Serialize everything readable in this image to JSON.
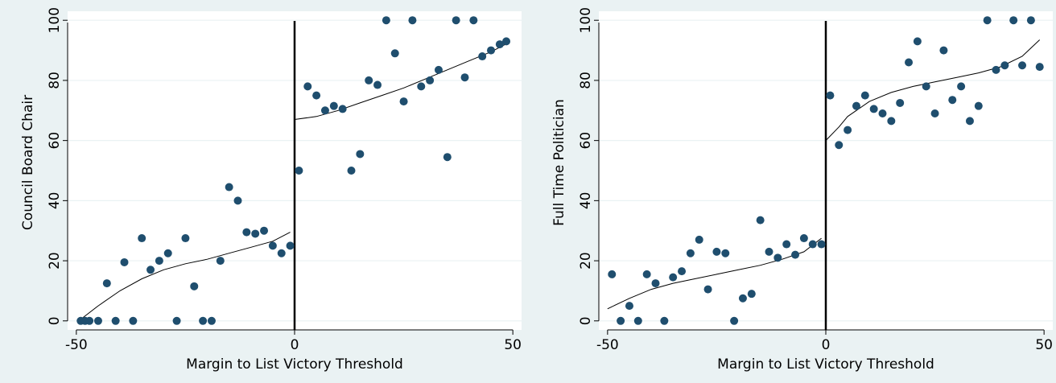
{
  "chart_data": [
    {
      "type": "scatter",
      "title": "",
      "xlabel": "Margin to List Victory Threshold",
      "ylabel": "Council Board Chair",
      "xlim": [
        -52,
        52
      ],
      "ylim": [
        -3,
        103
      ],
      "xticks": [
        -50,
        0,
        50
      ],
      "yticks": [
        0,
        20,
        40,
        60,
        80,
        100
      ],
      "xtick_labels": [
        "-50",
        "0",
        "50"
      ],
      "ytick_labels": [
        "0",
        "20",
        "40",
        "60",
        "80",
        "100"
      ],
      "grid": true,
      "legend": "none",
      "cutoff": 0,
      "marker_color": "#1f4e6e",
      "points": [
        [
          -49,
          0
        ],
        [
          -48,
          0
        ],
        [
          -47,
          0
        ],
        [
          -45,
          0
        ],
        [
          -43,
          12.5
        ],
        [
          -41,
          0
        ],
        [
          -39,
          19.5
        ],
        [
          -37,
          0
        ],
        [
          -35,
          27.5
        ],
        [
          -33,
          17
        ],
        [
          -31,
          20
        ],
        [
          -29,
          22.5
        ],
        [
          -27,
          0
        ],
        [
          -25,
          27.5
        ],
        [
          -23,
          11.5
        ],
        [
          -21,
          0
        ],
        [
          -19,
          0
        ],
        [
          -17,
          20
        ],
        [
          -15,
          44.5
        ],
        [
          -13,
          40
        ],
        [
          -11,
          29.5
        ],
        [
          -9,
          29
        ],
        [
          -7,
          30
        ],
        [
          -5,
          25
        ],
        [
          -3,
          22.5
        ],
        [
          -1,
          25
        ],
        [
          1,
          50
        ],
        [
          3,
          78
        ],
        [
          5,
          75
        ],
        [
          7,
          70
        ],
        [
          9,
          71.5
        ],
        [
          11,
          70.5
        ],
        [
          13,
          50
        ],
        [
          15,
          55.5
        ],
        [
          17,
          80
        ],
        [
          19,
          78.5
        ],
        [
          21,
          100
        ],
        [
          23,
          89
        ],
        [
          25,
          73
        ],
        [
          27,
          100
        ],
        [
          29,
          78
        ],
        [
          31,
          80
        ],
        [
          33,
          83.5
        ],
        [
          35,
          54.5
        ],
        [
          37,
          100
        ],
        [
          39,
          81
        ],
        [
          41,
          100
        ],
        [
          43,
          88
        ],
        [
          45,
          90
        ],
        [
          47,
          92
        ],
        [
          48.5,
          93
        ]
      ],
      "fit_left": [
        [
          -49,
          0.5
        ],
        [
          -45,
          5
        ],
        [
          -40,
          10
        ],
        [
          -35,
          14
        ],
        [
          -30,
          17
        ],
        [
          -25,
          19
        ],
        [
          -20,
          20.5
        ],
        [
          -15,
          22.5
        ],
        [
          -10,
          24.5
        ],
        [
          -5,
          26.5
        ],
        [
          -1,
          29.5
        ]
      ],
      "fit_right": [
        [
          0,
          67
        ],
        [
          5,
          68
        ],
        [
          10,
          70
        ],
        [
          15,
          72.5
        ],
        [
          20,
          75
        ],
        [
          25,
          77.5
        ],
        [
          30,
          80.5
        ],
        [
          35,
          83.5
        ],
        [
          40,
          86.5
        ],
        [
          45,
          89.5
        ],
        [
          49,
          92.5
        ]
      ]
    },
    {
      "type": "scatter",
      "title": "",
      "xlabel": "Margin to List Victory Threshold",
      "ylabel": "Full Time Politician",
      "xlim": [
        -52,
        52
      ],
      "ylim": [
        -3,
        103
      ],
      "xticks": [
        -50,
        0,
        50
      ],
      "yticks": [
        0,
        20,
        40,
        60,
        80,
        100
      ],
      "xtick_labels": [
        "-50",
        "0",
        "50"
      ],
      "ytick_labels": [
        "0",
        "20",
        "40",
        "60",
        "80",
        "100"
      ],
      "grid": true,
      "legend": "none",
      "cutoff": 0,
      "marker_color": "#1f4e6e",
      "points": [
        [
          -49,
          15.5
        ],
        [
          -47,
          0
        ],
        [
          -45,
          5
        ],
        [
          -43,
          0
        ],
        [
          -41,
          15.5
        ],
        [
          -39,
          12.5
        ],
        [
          -37,
          0
        ],
        [
          -35,
          14.5
        ],
        [
          -33,
          16.5
        ],
        [
          -31,
          22.5
        ],
        [
          -29,
          27
        ],
        [
          -27,
          10.5
        ],
        [
          -25,
          23
        ],
        [
          -23,
          22.5
        ],
        [
          -21,
          0
        ],
        [
          -19,
          7.5
        ],
        [
          -17,
          9
        ],
        [
          -15,
          33.5
        ],
        [
          -13,
          23
        ],
        [
          -11,
          21
        ],
        [
          -9,
          25.5
        ],
        [
          -7,
          22
        ],
        [
          -5,
          27.5
        ],
        [
          -3,
          25.5
        ],
        [
          -1,
          25.5
        ],
        [
          1,
          75
        ],
        [
          3,
          58.5
        ],
        [
          5,
          63.5
        ],
        [
          7,
          71.5
        ],
        [
          9,
          75
        ],
        [
          11,
          70.5
        ],
        [
          13,
          69
        ],
        [
          15,
          66.5
        ],
        [
          17,
          72.5
        ],
        [
          19,
          86
        ],
        [
          21,
          93
        ],
        [
          23,
          78
        ],
        [
          25,
          69
        ],
        [
          27,
          90
        ],
        [
          29,
          73.5
        ],
        [
          31,
          78
        ],
        [
          33,
          66.5
        ],
        [
          35,
          71.5
        ],
        [
          37,
          100
        ],
        [
          39,
          83.5
        ],
        [
          41,
          85
        ],
        [
          43,
          100
        ],
        [
          45,
          85
        ],
        [
          47,
          100
        ],
        [
          49,
          84.5
        ]
      ],
      "fit_left": [
        [
          -50,
          4
        ],
        [
          -45,
          7.5
        ],
        [
          -40,
          10.5
        ],
        [
          -35,
          12.5
        ],
        [
          -30,
          14
        ],
        [
          -25,
          15.5
        ],
        [
          -20,
          17
        ],
        [
          -15,
          18.5
        ],
        [
          -10,
          20.5
        ],
        [
          -5,
          23
        ],
        [
          -1,
          27.5
        ]
      ],
      "fit_right": [
        [
          0,
          60
        ],
        [
          3,
          64.5
        ],
        [
          5,
          68
        ],
        [
          10,
          73
        ],
        [
          15,
          76
        ],
        [
          20,
          78
        ],
        [
          25,
          79.5
        ],
        [
          30,
          81
        ],
        [
          35,
          82.5
        ],
        [
          40,
          84.5
        ],
        [
          45,
          88
        ],
        [
          49,
          93.5
        ]
      ]
    }
  ]
}
